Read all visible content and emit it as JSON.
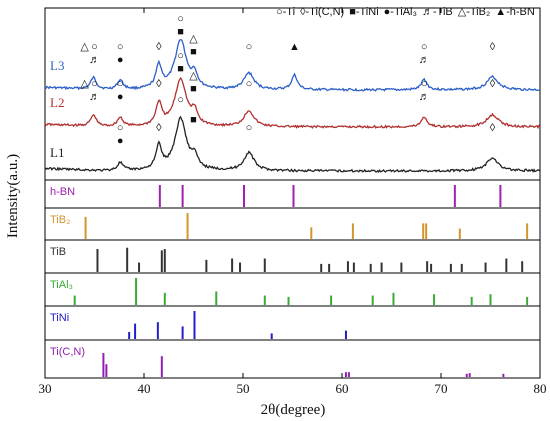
{
  "chart_data": {
    "type": "line",
    "xlabel": "2θ(degree)",
    "ylabel": "Intensity(a.u.)",
    "xlim": [
      30,
      80
    ],
    "xticks": [
      30,
      40,
      50,
      60,
      70,
      80
    ],
    "legend_items": [
      {
        "symbol": "○",
        "text": "-Ti"
      },
      {
        "symbol": "◊",
        "text": "-Ti(C,N)"
      },
      {
        "symbol": "■",
        "text": "-TiNi"
      },
      {
        "symbol": "●",
        "text": "-TiAl₃"
      },
      {
        "symbol": "♬",
        "text": "-TiB"
      },
      {
        "symbol": "△",
        "text": "-TiB₂"
      },
      {
        "symbol": "▲",
        "text": "-h-BN"
      }
    ],
    "patterns": [
      {
        "name": "L3",
        "color": "#2b5fc8",
        "baseline": 0.2,
        "peaks": [
          [
            34.9,
            0.22,
            0.35
          ],
          [
            37.6,
            0.18,
            0.35
          ],
          [
            41.5,
            0.45,
            0.35
          ],
          [
            43.7,
            0.95,
            0.7
          ],
          [
            45.1,
            0.25,
            0.35
          ],
          [
            50.6,
            0.32,
            0.6
          ],
          [
            55.2,
            0.28,
            0.35
          ],
          [
            68.3,
            0.2,
            0.35
          ],
          [
            75.2,
            0.25,
            0.7
          ]
        ],
        "markers": [
          {
            "x": 34.0,
            "symbols": "△"
          },
          {
            "x": 35.0,
            "symbols": "○♬"
          },
          {
            "x": 37.6,
            "symbols": "○●"
          },
          {
            "x": 41.5,
            "symbols": "◊"
          },
          {
            "x": 43.7,
            "symbols": "○■"
          },
          {
            "x": 45.0,
            "symbols": "△■"
          },
          {
            "x": 50.6,
            "symbols": "○"
          },
          {
            "x": 55.2,
            "symbols": "▲"
          },
          {
            "x": 68.3,
            "symbols": "○♬"
          },
          {
            "x": 75.2,
            "symbols": "◊"
          }
        ]
      },
      {
        "name": "L2",
        "color": "#b03030",
        "baseline": 0.2,
        "peaks": [
          [
            34.9,
            0.22,
            0.35
          ],
          [
            37.6,
            0.18,
            0.35
          ],
          [
            41.5,
            0.45,
            0.35
          ],
          [
            43.7,
            0.95,
            0.7
          ],
          [
            45.1,
            0.25,
            0.35
          ],
          [
            50.6,
            0.32,
            0.6
          ],
          [
            68.3,
            0.2,
            0.35
          ],
          [
            75.2,
            0.25,
            0.7
          ]
        ],
        "markers": [
          {
            "x": 34.0,
            "symbols": "△"
          },
          {
            "x": 35.0,
            "symbols": "○♬"
          },
          {
            "x": 37.6,
            "symbols": "○●"
          },
          {
            "x": 41.5,
            "symbols": "◊"
          },
          {
            "x": 43.7,
            "symbols": "○■"
          },
          {
            "x": 45.0,
            "symbols": "△■"
          },
          {
            "x": 50.6,
            "symbols": "○"
          },
          {
            "x": 68.3,
            "symbols": "○♬"
          },
          {
            "x": 75.2,
            "symbols": "◊"
          }
        ]
      },
      {
        "name": "L1",
        "color": "#222222",
        "baseline": 0.2,
        "peaks": [
          [
            37.6,
            0.15,
            0.35
          ],
          [
            41.5,
            0.45,
            0.35
          ],
          [
            43.7,
            1.0,
            0.7
          ],
          [
            45.1,
            0.22,
            0.35
          ],
          [
            50.6,
            0.35,
            0.6
          ],
          [
            75.2,
            0.25,
            0.7
          ]
        ],
        "markers": [
          {
            "x": 37.6,
            "symbols": "○●"
          },
          {
            "x": 41.5,
            "symbols": "◊"
          },
          {
            "x": 43.7,
            "symbols": "○"
          },
          {
            "x": 45.0,
            "symbols": "■"
          },
          {
            "x": 50.6,
            "symbols": "○"
          },
          {
            "x": 75.2,
            "symbols": "◊"
          }
        ]
      }
    ],
    "references": [
      {
        "name": "h-BN",
        "color": "#a020b0",
        "lines": [
          [
            41.6,
            1.0
          ],
          [
            43.9,
            1.0
          ],
          [
            50.1,
            1.0
          ],
          [
            55.1,
            1.0
          ],
          [
            71.4,
            1.0
          ],
          [
            76.0,
            1.0
          ]
        ]
      },
      {
        "name": "TiB₂",
        "color": "#d4952a",
        "lines": [
          [
            34.1,
            0.85
          ],
          [
            44.4,
            1.0
          ],
          [
            56.9,
            0.45
          ],
          [
            61.1,
            0.6
          ],
          [
            68.2,
            0.6
          ],
          [
            68.5,
            0.6
          ],
          [
            71.9,
            0.4
          ],
          [
            78.7,
            0.6
          ]
        ]
      },
      {
        "name": "TiB",
        "color": "#333333",
        "lines": [
          [
            35.3,
            0.85
          ],
          [
            38.3,
            0.9
          ],
          [
            39.5,
            0.35
          ],
          [
            41.8,
            0.8
          ],
          [
            42.1,
            0.85
          ],
          [
            46.3,
            0.45
          ],
          [
            48.9,
            0.5
          ],
          [
            49.7,
            0.35
          ],
          [
            52.2,
            0.5
          ],
          [
            57.9,
            0.3
          ],
          [
            58.7,
            0.3
          ],
          [
            60.6,
            0.4
          ],
          [
            61.2,
            0.35
          ],
          [
            62.9,
            0.3
          ],
          [
            64.0,
            0.35
          ],
          [
            66.0,
            0.35
          ],
          [
            68.6,
            0.4
          ],
          [
            69.0,
            0.3
          ],
          [
            71.0,
            0.3
          ],
          [
            72.1,
            0.3
          ],
          [
            74.5,
            0.35
          ],
          [
            76.6,
            0.5
          ],
          [
            78.2,
            0.4
          ]
        ]
      },
      {
        "name": "TiAl₃",
        "color": "#3aaa35",
        "lines": [
          [
            33.0,
            0.35
          ],
          [
            39.2,
            1.0
          ],
          [
            42.1,
            0.45
          ],
          [
            47.3,
            0.5
          ],
          [
            52.2,
            0.35
          ],
          [
            54.6,
            0.3
          ],
          [
            58.9,
            0.35
          ],
          [
            63.1,
            0.35
          ],
          [
            65.2,
            0.45
          ],
          [
            69.3,
            0.4
          ],
          [
            73.1,
            0.3
          ],
          [
            75.0,
            0.4
          ],
          [
            78.7,
            0.3
          ]
        ]
      },
      {
        "name": "TiNi",
        "color": "#2020c8",
        "lines": [
          [
            38.5,
            0.25
          ],
          [
            39.1,
            0.55
          ],
          [
            41.4,
            0.6
          ],
          [
            43.9,
            0.45
          ],
          [
            45.1,
            1.0
          ],
          [
            52.9,
            0.2
          ],
          [
            60.4,
            0.3
          ]
        ]
      },
      {
        "name": "Ti(C,N)",
        "color": "#9020b0",
        "lines": [
          [
            35.9,
            0.75
          ],
          [
            36.2,
            0.4
          ],
          [
            41.8,
            0.65
          ],
          [
            60.4,
            0.15
          ],
          [
            60.7,
            0.15
          ],
          [
            72.6,
            0.1
          ],
          [
            72.9,
            0.12
          ],
          [
            76.3,
            0.1
          ]
        ]
      }
    ]
  }
}
